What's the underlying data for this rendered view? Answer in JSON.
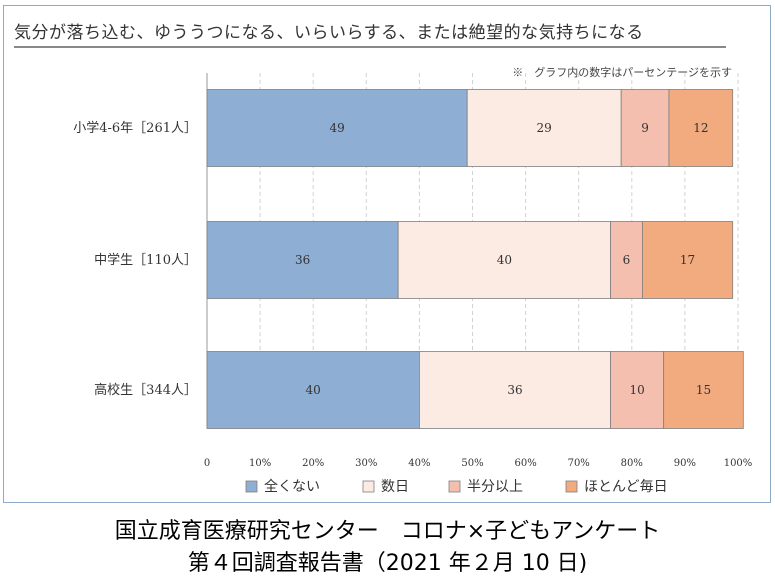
{
  "chart_data": {
    "type": "bar",
    "orientation": "horizontal",
    "stacked": true,
    "title": "気分が落ち込む、ゆううつになる、いらいらする、または絶望的な気持ちになる",
    "note": "※　グラフ内の数字はパーセンテージを示す",
    "categories": [
      "小学4-6年［261人］",
      "中学生［110人］",
      "高校生［344人］"
    ],
    "series": [
      {
        "name": "全くない",
        "color": "#8eaed3",
        "values": [
          49,
          36,
          40
        ]
      },
      {
        "name": "数日",
        "color": "#fcebe3",
        "values": [
          29,
          40,
          36
        ]
      },
      {
        "name": "半分以上",
        "color": "#f4bfaf",
        "values": [
          9,
          6,
          10
        ]
      },
      {
        "name": "ほとんど毎日",
        "color": "#f2aa7f",
        "values": [
          12,
          17,
          15
        ]
      }
    ],
    "xlim": [
      0,
      100
    ],
    "xticks": [
      "0",
      "10%",
      "20%",
      "30%",
      "40%",
      "50%",
      "60%",
      "70%",
      "80%",
      "90%",
      "100%"
    ],
    "grid": true,
    "legend_position": "bottom"
  },
  "footer": {
    "line1": "国立成育医療研究センター　コロナ×子どもアンケート",
    "line2": "第４回調査報告書（2021 年２月 10 日)"
  }
}
